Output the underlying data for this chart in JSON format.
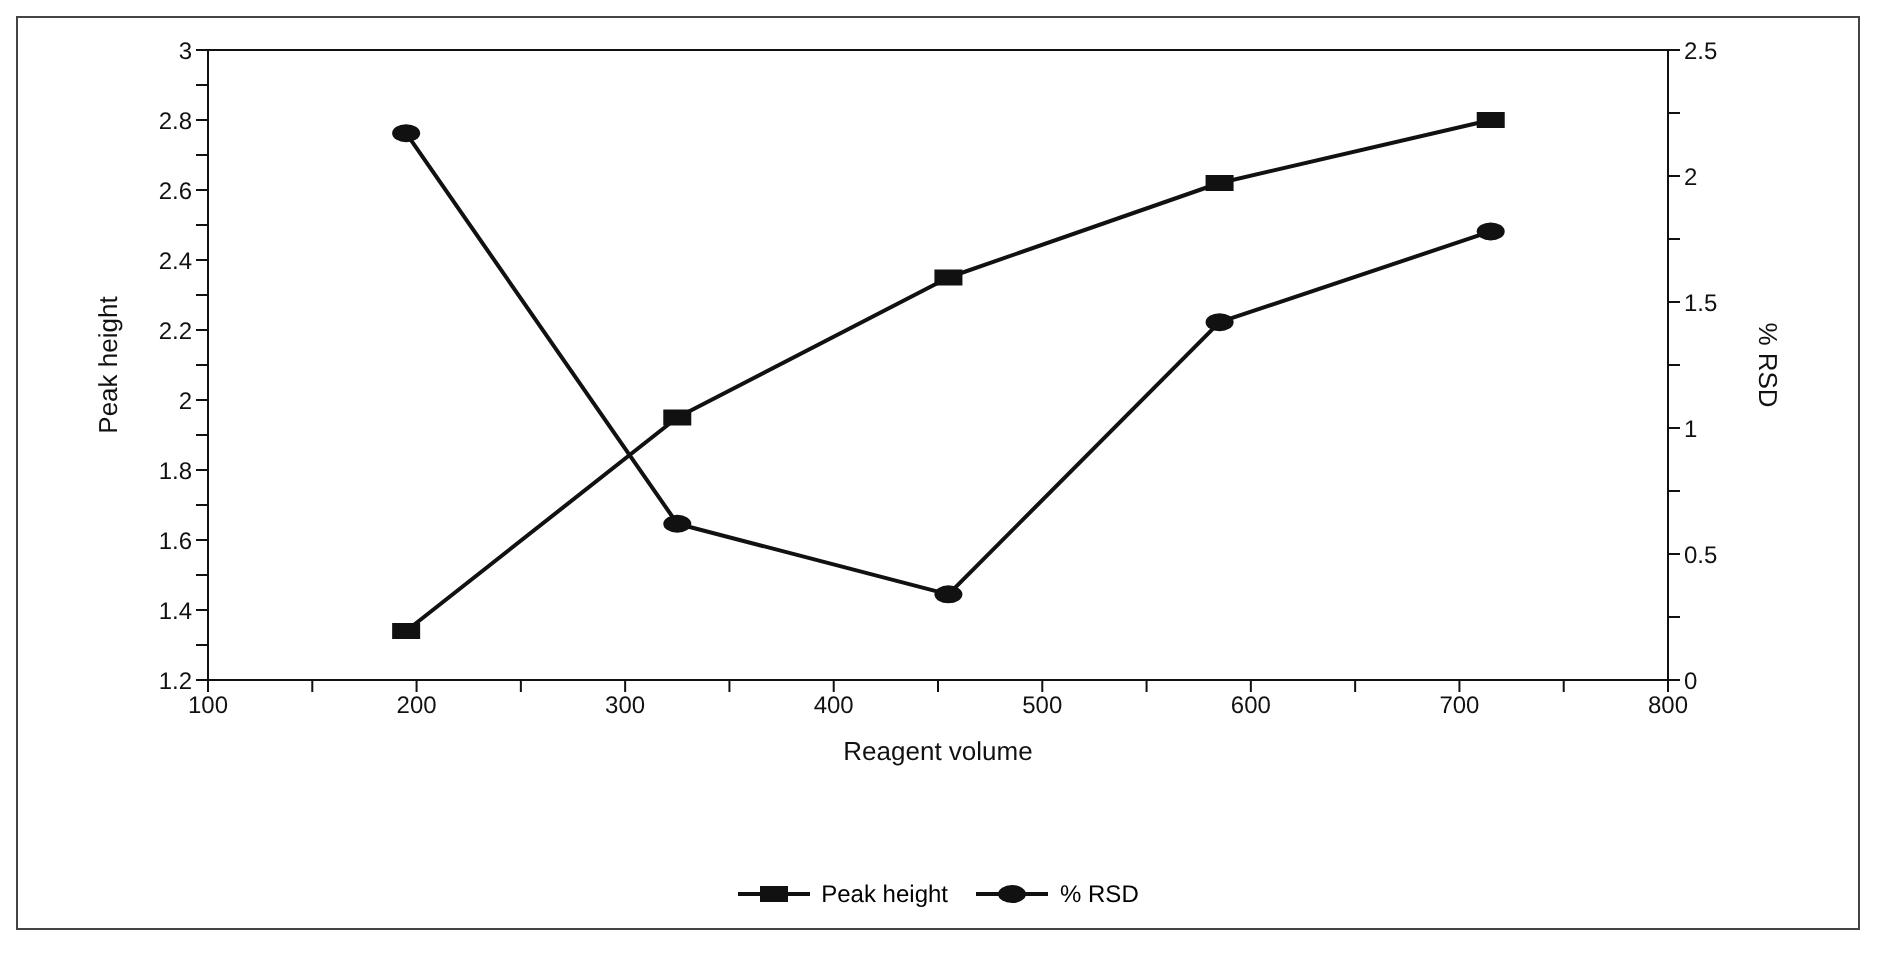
{
  "chart_data": {
    "type": "line",
    "xlabel": "Reagent volume",
    "ylabel": "Peak height",
    "y2label": "% RSD",
    "x": [
      195,
      325,
      455,
      585,
      715
    ],
    "series": [
      {
        "name": "Peak height",
        "color": "#111111",
        "marker": "square",
        "values": [
          1.34,
          1.95,
          2.35,
          2.62,
          2.8
        ]
      },
      {
        "name": "% RSD",
        "color": "#111111",
        "marker": "circle",
        "axis": "y2",
        "values": [
          2.17,
          0.62,
          0.34,
          1.42,
          1.78
        ]
      }
    ],
    "xlim": [
      100,
      800
    ],
    "xticks": [
      100,
      {
        "value": 150,
        "label": null
      },
      200,
      {
        "value": 250,
        "label": null
      },
      300,
      {
        "value": 350,
        "label": null
      },
      400,
      {
        "value": 450,
        "label": null
      },
      500,
      {
        "value": 550,
        "label": null
      },
      600,
      {
        "value": 650,
        "label": null
      },
      700,
      {
        "value": 750,
        "label": null
      },
      800
    ],
    "ylim": [
      1.2,
      3
    ],
    "yticks": [
      1.2,
      {
        "value": 1.3,
        "label": null
      },
      1.4,
      {
        "value": 1.5,
        "label": null
      },
      1.6,
      {
        "value": 1.7,
        "label": null
      },
      1.8,
      {
        "value": 1.9,
        "label": null
      },
      2,
      {
        "value": 2.1,
        "label": null
      },
      2.2,
      {
        "value": 2.3,
        "label": null
      },
      2.4,
      {
        "value": 2.5,
        "label": null
      },
      2.6,
      {
        "value": 2.7,
        "label": null
      },
      2.8,
      {
        "value": 2.9,
        "label": null
      },
      3
    ],
    "y2lim": [
      0,
      2.5
    ],
    "y2ticks": [
      0,
      {
        "value": 0.25,
        "label": null
      },
      0.5,
      {
        "value": 0.75,
        "label": null
      },
      1,
      {
        "value": 1.25,
        "label": null
      },
      1.5,
      {
        "value": 1.75,
        "label": null
      },
      2,
      {
        "value": 2.25,
        "label": null
      },
      2.5
    ],
    "grid": false,
    "legend": "bottom",
    "line_style": "solid"
  }
}
